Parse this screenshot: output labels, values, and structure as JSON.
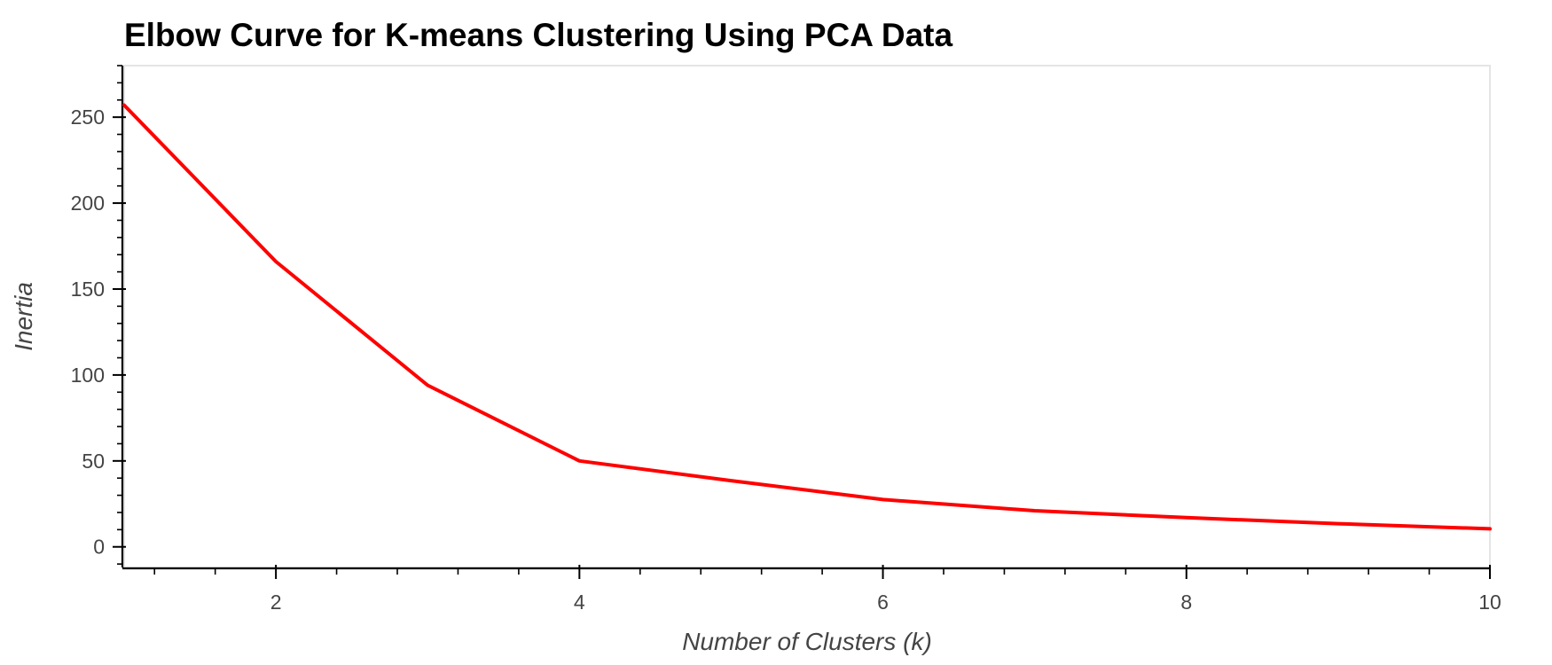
{
  "chart_data": {
    "type": "line",
    "title": "Elbow Curve for K-means Clustering Using PCA Data",
    "xlabel": "Number of Clusters (k)",
    "ylabel": "Inertia",
    "x": [
      1,
      2,
      3,
      4,
      5,
      6,
      7,
      8,
      9,
      10
    ],
    "series": [
      {
        "values": [
          257,
          166,
          94,
          50,
          38.5,
          27.5,
          21,
          17,
          13.5,
          10.5
        ],
        "color": "#ff0000"
      }
    ],
    "xlim": [
      1,
      10
    ],
    "ylim": [
      -12,
      280
    ],
    "xticks": [
      2,
      4,
      6,
      8,
      10
    ],
    "xtick_labels": [
      "2",
      "4",
      "6",
      "8",
      "10"
    ],
    "yticks": [
      0,
      50,
      100,
      150,
      200,
      250
    ],
    "ytick_labels": [
      "0",
      "50",
      "100",
      "150",
      "200",
      "250"
    ],
    "grid": false,
    "legend": "none"
  }
}
